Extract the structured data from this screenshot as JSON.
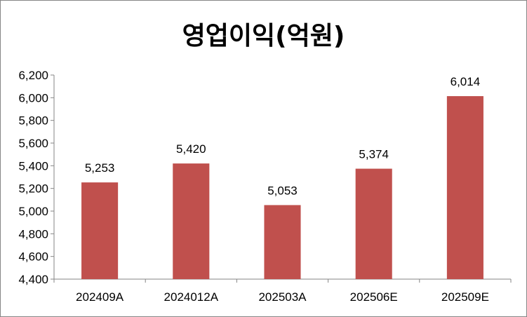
{
  "chart_data": {
    "type": "bar",
    "title": "영업이익(억원)",
    "categories": [
      "202409A",
      "2024012A",
      "202503A",
      "202506E",
      "202509E"
    ],
    "values": [
      5253,
      5420,
      5053,
      5374,
      6014
    ],
    "value_labels": [
      "5,253",
      "5,420",
      "5,053",
      "5,374",
      "6,014"
    ],
    "ylim": [
      4400,
      6200
    ],
    "yticks": [
      4400,
      4600,
      4800,
      5000,
      5200,
      5400,
      5600,
      5800,
      6000,
      6200
    ],
    "ytick_labels": [
      "4,400",
      "4,600",
      "4,800",
      "5,000",
      "5,200",
      "5,400",
      "5,600",
      "5,800",
      "6,000",
      "6,200"
    ],
    "grid": false,
    "legend": "none",
    "bar_color": "#C0504D"
  }
}
